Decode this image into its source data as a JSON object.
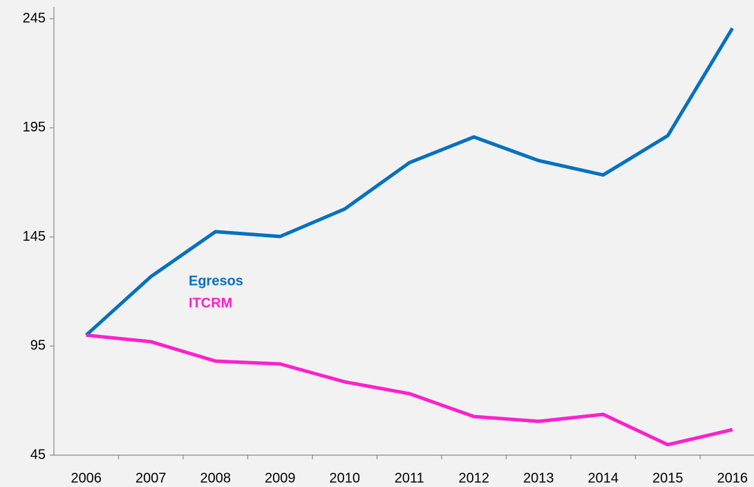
{
  "chart_data": {
    "type": "line",
    "categories": [
      "2006",
      "2007",
      "2008",
      "2009",
      "2010",
      "2011",
      "2012",
      "2013",
      "2014",
      "2015",
      "2016"
    ],
    "series": [
      {
        "name": "Egresos",
        "color": "#0070c0",
        "values": [
          100,
          126.8,
          147.4,
          145.2,
          157.8,
          179,
          190.8,
          180,
          173.4,
          191.4,
          240.6
        ]
      },
      {
        "name": "ITCRM",
        "color": "#ff22cc",
        "values": [
          100,
          97,
          88.1,
          86.8,
          78.6,
          73.2,
          62.7,
          60.5,
          63.7,
          49.8,
          56.7
        ]
      }
    ],
    "ylim": [
      45,
      245
    ],
    "yticks": [
      45,
      95,
      145,
      195,
      245
    ],
    "grid": false
  }
}
